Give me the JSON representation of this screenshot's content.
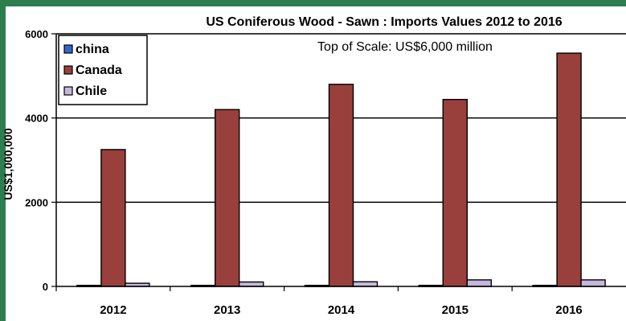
{
  "chart_data": {
    "type": "bar",
    "title": "US Coniferous Wood - Sawn  :   Imports Values 2012 to 2016",
    "subtitle": "Top of Scale: US$6,000 million",
    "ylabel": "US$1,000,000",
    "xlabel": "",
    "ylim": [
      0,
      6000
    ],
    "yticks": [
      "0",
      "2000",
      "4000",
      "6000"
    ],
    "ytick_values": [
      0,
      2000,
      4000,
      6000
    ],
    "categories": [
      "2012",
      "2013",
      "2014",
      "2015",
      "2016"
    ],
    "series": [
      {
        "name": "china",
        "color": "#3366cc",
        "values": [
          25,
          25,
          25,
          25,
          25
        ]
      },
      {
        "name": "Canada",
        "color": "#993f3c",
        "values": [
          3250,
          4200,
          4800,
          4440,
          5540
        ]
      },
      {
        "name": "Chile",
        "color": "#c5b8dc",
        "values": [
          75,
          105,
          110,
          155,
          155
        ]
      }
    ],
    "grid": true,
    "legend_position": "top-left"
  }
}
